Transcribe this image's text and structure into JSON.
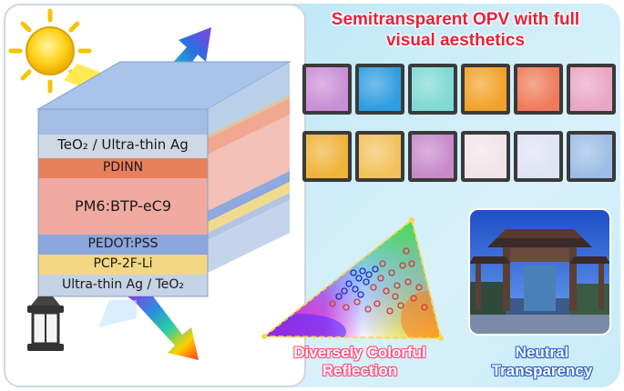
{
  "title_line1": "Semitransparent OPV with full",
  "title_line2": "visual aesthetics",
  "layers": {
    "teo2_ag": "TeO₂ / Ultra-thin Ag",
    "pdinn": "PDINN",
    "active": "PM6:BTP-eC9",
    "pedot": "PEDOT:PSS",
    "pcp": "PCP-2F-Li",
    "ag_teo2": "Ultra-thin Ag / TeO₂"
  },
  "labels": {
    "reflection_line1": "Diversely Colorful",
    "reflection_line2": "Reflection",
    "transparency_line1": "Neutral",
    "transparency_line2": "Transparency"
  },
  "swatch_colors_row1": [
    "#c98fd6",
    "#2f9de0",
    "#7fd9d4",
    "#f2a22a",
    "#f07b5a",
    "#e9a6c4"
  ],
  "swatch_colors_row2": [
    "#f0b33a",
    "#f3c25d",
    "#c78ac9",
    "#f1e4e9",
    "#dfe3f3",
    "#9ebde6"
  ],
  "colors": {
    "title": "#e8203a",
    "reflection_label": "#ff6a8c",
    "transparency_label": "#3a6fd8"
  }
}
